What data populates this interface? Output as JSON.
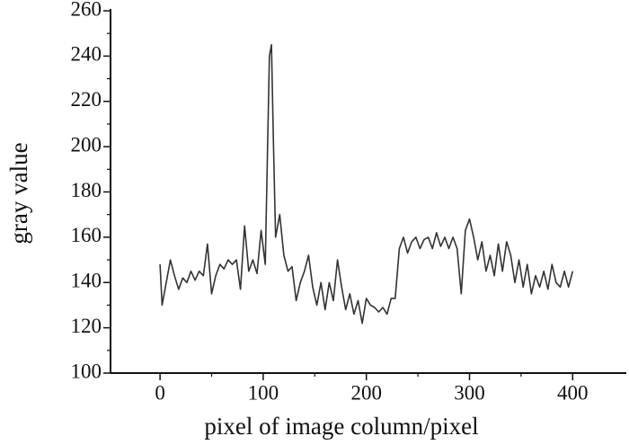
{
  "chart_data": {
    "type": "line",
    "x_label": "pixel of image column/pixel",
    "y_label": "gray value",
    "x": [
      0,
      2,
      6,
      10,
      14,
      18,
      22,
      26,
      30,
      34,
      38,
      42,
      46,
      50,
      54,
      58,
      62,
      66,
      70,
      74,
      78,
      82,
      86,
      90,
      94,
      98,
      102,
      106,
      108,
      110,
      112,
      116,
      120,
      124,
      128,
      132,
      136,
      140,
      144,
      148,
      152,
      156,
      160,
      164,
      168,
      172,
      176,
      180,
      184,
      188,
      192,
      196,
      200,
      204,
      208,
      212,
      216,
      220,
      224,
      228,
      232,
      236,
      240,
      244,
      248,
      252,
      256,
      260,
      264,
      268,
      272,
      276,
      280,
      284,
      288,
      292,
      296,
      300,
      304,
      308,
      312,
      316,
      320,
      324,
      328,
      332,
      336,
      340,
      344,
      348,
      352,
      356,
      360,
      364,
      368,
      372,
      376,
      380,
      384,
      388,
      392,
      396,
      400
    ],
    "series": [
      {
        "name": "gray value",
        "color": "#333333",
        "values": [
          148,
          130,
          140,
          150,
          143,
          137,
          142,
          140,
          145,
          141,
          145,
          143,
          157,
          135,
          143,
          148,
          146,
          150,
          148,
          150,
          137,
          165,
          145,
          150,
          144,
          163,
          148,
          240,
          245,
          200,
          160,
          170,
          152,
          145,
          147,
          132,
          140,
          145,
          152,
          138,
          130,
          140,
          128,
          140,
          132,
          150,
          138,
          128,
          135,
          126,
          132,
          122,
          133,
          130,
          129,
          127,
          129,
          126,
          133,
          133,
          155,
          160,
          153,
          158,
          160,
          155,
          159,
          160,
          155,
          162,
          156,
          160,
          155,
          160,
          155,
          135,
          163,
          168,
          160,
          150,
          158,
          145,
          152,
          143,
          157,
          145,
          158,
          152,
          140,
          150,
          138,
          148,
          135,
          143,
          138,
          145,
          137,
          148,
          140,
          138,
          145,
          138,
          145
        ]
      }
    ],
    "xlim": [
      -48,
      452
    ],
    "xticks": [
      0,
      100,
      200,
      300,
      400
    ],
    "x_minor_ticks": [
      50,
      150,
      250,
      350
    ],
    "ylim": [
      100,
      260
    ],
    "yticks": [
      100,
      120,
      140,
      160,
      180,
      200,
      220,
      240,
      260
    ],
    "y_minor_ticks": [
      110,
      130,
      150,
      170,
      190,
      210,
      230,
      250
    ]
  }
}
